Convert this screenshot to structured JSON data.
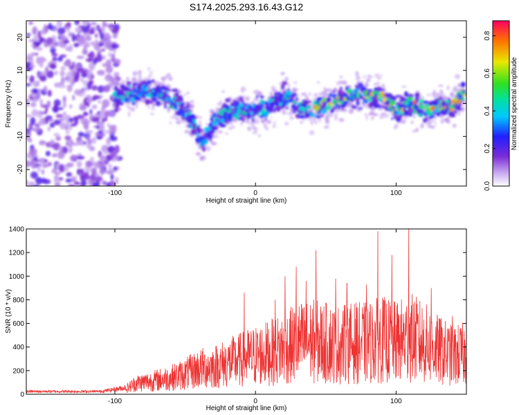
{
  "chart_data": [
    {
      "type": "heatmap",
      "title": "S174.2025.293.16.43.G12",
      "xlabel": "Height of straight line (km)",
      "ylabel": "Frequency (Hz)",
      "xlim": [
        -163,
        150
      ],
      "ylim": [
        -25,
        25
      ],
      "xticks": [
        -100,
        0,
        100
      ],
      "yticks": [
        -20,
        -10,
        0,
        10,
        20
      ],
      "colorbar": {
        "label": "Normalized spectral amplitude",
        "range": [
          0.0,
          0.88
        ],
        "ticks": [
          0.0,
          0.2,
          0.4,
          0.6,
          0.8
        ],
        "tick_labels": [
          "0.0",
          "0.2",
          "0.4",
          "0.6",
          "0.8"
        ],
        "colormap": "rainbow"
      },
      "ridge": {
        "x": [
          -160,
          -140,
          -120,
          -100,
          -90,
          -80,
          -70,
          -60,
          -50,
          -42,
          -38,
          -30,
          -20,
          -10,
          0,
          10,
          20,
          30,
          40,
          50,
          60,
          70,
          80,
          90,
          100,
          110,
          120,
          130,
          140,
          150
        ],
        "y": [
          0,
          0,
          0,
          2,
          3,
          4,
          3,
          1,
          -2,
          -8,
          -12,
          -6,
          -3,
          -2,
          -2,
          -1,
          2,
          -1,
          -2,
          0,
          1,
          3,
          2,
          2,
          -2,
          0,
          -2,
          -1,
          -1,
          4
        ]
      }
    },
    {
      "type": "line",
      "xlabel": "Height of straight line (km)",
      "ylabel": "SNR (10 * v/v)",
      "xlim": [
        -163,
        150
      ],
      "ylim": [
        0,
        1400
      ],
      "xticks": [
        -100,
        0,
        100
      ],
      "yticks": [
        0,
        200,
        400,
        600,
        800,
        1000,
        1200,
        1400
      ],
      "color": "#ee3333",
      "envelope": {
        "x": [
          -163,
          -140,
          -110,
          -92,
          -85,
          -75,
          -60,
          -50,
          -40,
          -30,
          -20,
          -10,
          0,
          10,
          20,
          30,
          40,
          50,
          60,
          70,
          80,
          90,
          100,
          110,
          120,
          130,
          140,
          150
        ],
        "y": [
          25,
          25,
          25,
          60,
          120,
          140,
          180,
          220,
          280,
          300,
          340,
          380,
          420,
          450,
          500,
          560,
          580,
          560,
          540,
          560,
          560,
          600,
          560,
          620,
          560,
          480,
          420,
          440
        ]
      },
      "spikes": [
        {
          "x": 109,
          "y": 1400
        },
        {
          "x": 87,
          "y": 1380
        },
        {
          "x": 43,
          "y": 1220
        },
        {
          "x": 97,
          "y": 1180
        },
        {
          "x": 29,
          "y": 1080
        },
        {
          "x": 21,
          "y": 1000
        },
        {
          "x": 36,
          "y": 960
        },
        {
          "x": 57,
          "y": 980
        },
        {
          "x": 65,
          "y": 940
        },
        {
          "x": 79,
          "y": 930
        },
        {
          "x": -8,
          "y": 860
        },
        {
          "x": 125,
          "y": 900
        },
        {
          "x": 14,
          "y": 800
        },
        {
          "x": 140,
          "y": 660
        }
      ]
    }
  ]
}
